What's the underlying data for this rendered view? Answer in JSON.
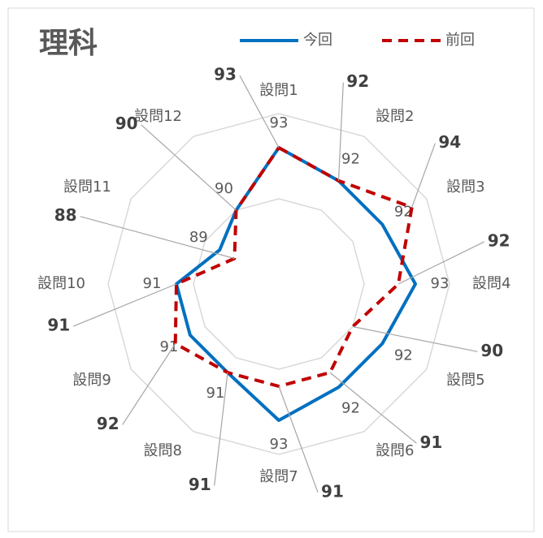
{
  "chart_data": {
    "type": "radar",
    "title": "理科",
    "categories": [
      "設問1",
      "設問2",
      "設問3",
      "設問4",
      "設問5",
      "設問6",
      "設問7",
      "設問8",
      "設問9",
      "設問10",
      "設問11",
      "設問12"
    ],
    "series": [
      {
        "name": "今回",
        "color": "#0070c0",
        "values": [
          93,
          92,
          92,
          93,
          92,
          92,
          93,
          91,
          91,
          91,
          89,
          90
        ]
      },
      {
        "name": "前回",
        "color": "#c00000",
        "dashed": true,
        "values": [
          93,
          92,
          94,
          92,
          90,
          91,
          91,
          91,
          92,
          91,
          88,
          90
        ]
      }
    ],
    "ylim": [
      85,
      95
    ],
    "yticks": [
      85,
      90,
      95
    ],
    "grid": true,
    "legend": "top"
  }
}
